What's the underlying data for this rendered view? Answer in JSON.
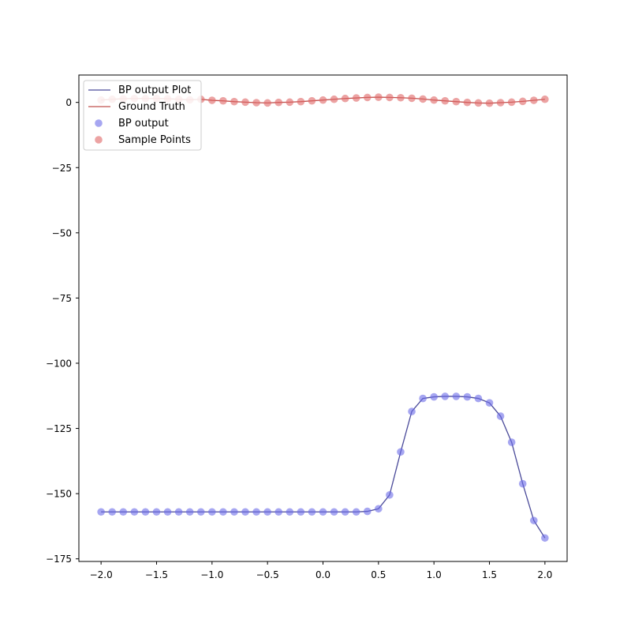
{
  "chart_data": {
    "type": "line",
    "title": "",
    "xlabel": "",
    "ylabel": "",
    "xlim": [
      -2.2,
      2.2
    ],
    "ylim": [
      -176,
      10.5
    ],
    "x_ticks": [
      -2.0,
      -1.5,
      -1.0,
      -0.5,
      0.0,
      0.5,
      1.0,
      1.5,
      2.0
    ],
    "x_tick_labels": [
      "−2.0",
      "−1.5",
      "−1.0",
      "−0.5",
      "0.0",
      "0.5",
      "1.0",
      "1.5",
      "2.0"
    ],
    "y_ticks": [
      0,
      -25,
      -50,
      -75,
      -100,
      -125,
      -150,
      -175
    ],
    "y_tick_labels": [
      "0",
      "−25",
      "−50",
      "−75",
      "−100",
      "−125",
      "−150",
      "−175"
    ],
    "grid": false,
    "legend_position": "top-left",
    "x": [
      -2.0,
      -1.9,
      -1.8,
      -1.7,
      -1.6,
      -1.5,
      -1.4,
      -1.3,
      -1.2,
      -1.1,
      -1.0,
      -0.9,
      -0.8,
      -0.7,
      -0.6,
      -0.5,
      -0.4,
      -0.3,
      -0.2,
      -0.1,
      0.0,
      0.1,
      0.2,
      0.3,
      0.4,
      0.5,
      0.6,
      0.7,
      0.8,
      0.9,
      1.0,
      1.1,
      1.2,
      1.3,
      1.4,
      1.5,
      1.6,
      1.7,
      1.8,
      1.9,
      2.0
    ],
    "series": [
      {
        "name": "BP output Plot",
        "kind": "line",
        "color": "#4b4b9a",
        "values": [
          -157,
          -157,
          -157,
          -157,
          -157,
          -157,
          -157,
          -157,
          -157,
          -157,
          -157,
          -157,
          -157,
          -157,
          -157,
          -157,
          -157,
          -157,
          -157,
          -157,
          -157,
          -157,
          -157,
          -157,
          -156.8,
          -155.8,
          -150.5,
          -134,
          -118.5,
          -113.5,
          -112.9,
          -112.7,
          -112.7,
          -112.9,
          -113.5,
          -115.2,
          -120.3,
          -130.3,
          -146.2,
          -160.3,
          -167
        ]
      },
      {
        "name": "Ground Truth",
        "kind": "line",
        "color": "#c0504d",
        "values": [
          0.9,
          1.2,
          1.4,
          1.5,
          1.5,
          1.5,
          1.4,
          1.2,
          1.0,
          1.2,
          0.8,
          0.6,
          0.3,
          0.1,
          -0.1,
          -0.2,
          0.0,
          0.1,
          0.3,
          0.6,
          0.9,
          1.2,
          1.5,
          1.7,
          1.9,
          2.0,
          1.9,
          1.8,
          1.6,
          1.3,
          0.9,
          0.6,
          0.3,
          0.0,
          -0.2,
          -0.3,
          -0.1,
          0.1,
          0.4,
          0.8,
          1.2
        ]
      },
      {
        "name": "BP output",
        "kind": "scatter",
        "color": "#6a6ae8",
        "values": [
          -157,
          -157,
          -157,
          -157,
          -157,
          -157,
          -157,
          -157,
          -157,
          -157,
          -157,
          -157,
          -157,
          -157,
          -157,
          -157,
          -157,
          -157,
          -157,
          -157,
          -157,
          -157,
          -157,
          -157,
          -156.8,
          -155.8,
          -150.5,
          -134,
          -118.5,
          -113.5,
          -112.9,
          -112.7,
          -112.7,
          -112.9,
          -113.5,
          -115.2,
          -120.3,
          -130.3,
          -146.2,
          -160.3,
          -167
        ]
      },
      {
        "name": "Sample Points",
        "kind": "scatter",
        "color": "#e06666",
        "values": [
          0.9,
          1.2,
          1.4,
          1.5,
          1.5,
          1.5,
          1.4,
          1.2,
          1.0,
          1.2,
          0.8,
          0.6,
          0.3,
          0.1,
          -0.1,
          -0.2,
          0.0,
          0.1,
          0.3,
          0.6,
          0.9,
          1.2,
          1.5,
          1.7,
          1.9,
          2.0,
          1.9,
          1.8,
          1.6,
          1.3,
          0.9,
          0.6,
          0.3,
          0.0,
          -0.2,
          -0.3,
          -0.1,
          0.1,
          0.4,
          0.8,
          1.2
        ]
      }
    ]
  }
}
